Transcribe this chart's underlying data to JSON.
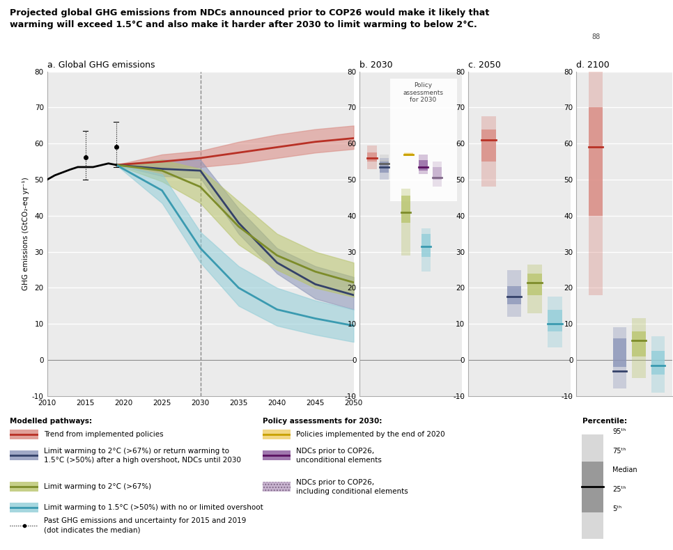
{
  "title_line1": "Projected global GHG emissions from NDCs announced prior to COP26 would make it likely that",
  "title_line2": "warming will exceed 1.5°C and also make it harder after 2030 to limit warming to below 2°C.",
  "panel_a_title": "a. Global GHG emissions",
  "panel_b_title": "b. 2030",
  "panel_c_title": "c. 2050",
  "panel_d_title": "d. 2100",
  "ylabel": "GHG emissions (GtCO₂-eq yr⁻¹)",
  "historical_years": [
    2010,
    2011,
    2012,
    2013,
    2014,
    2015,
    2016,
    2017,
    2018,
    2019
  ],
  "historical_values": [
    50.0,
    51.2,
    52.0,
    52.8,
    53.5,
    53.5,
    53.5,
    54.0,
    54.5,
    54.1
  ],
  "error_2015_med": 56.2,
  "error_2015_lo": 50.0,
  "error_2015_hi": 63.5,
  "error_2019_med": 59.1,
  "error_2019_lo": 53.5,
  "error_2019_hi": 66.0,
  "red_line_years": [
    2019,
    2025,
    2030,
    2035,
    2040,
    2045,
    2050
  ],
  "red_line_median": [
    54.1,
    55.0,
    56.0,
    57.5,
    59.0,
    60.5,
    61.5
  ],
  "red_band_lo": [
    54.1,
    53.5,
    53.5,
    54.5,
    56.0,
    57.5,
    58.5
  ],
  "red_band_hi": [
    54.1,
    57.0,
    58.0,
    60.5,
    62.5,
    64.0,
    65.0
  ],
  "navy_line_years": [
    2019,
    2025,
    2030,
    2035,
    2040,
    2045,
    2050
  ],
  "navy_line_median": [
    54.1,
    53.0,
    52.5,
    38.0,
    27.0,
    21.0,
    18.0
  ],
  "navy_band_lo": [
    54.1,
    51.0,
    50.5,
    35.0,
    24.0,
    17.0,
    14.0
  ],
  "navy_band_hi": [
    54.1,
    55.5,
    55.5,
    42.0,
    31.0,
    26.0,
    23.0
  ],
  "green_line_years": [
    2019,
    2025,
    2030,
    2035,
    2040,
    2045,
    2050
  ],
  "green_line_median": [
    54.1,
    52.5,
    48.0,
    37.0,
    29.0,
    24.5,
    21.5
  ],
  "green_band_lo": [
    54.1,
    49.5,
    43.5,
    32.0,
    25.0,
    20.0,
    17.5
  ],
  "green_band_hi": [
    54.1,
    55.5,
    53.0,
    44.0,
    35.0,
    30.0,
    27.0
  ],
  "blue_line_years": [
    2019,
    2025,
    2030,
    2035,
    2040,
    2045,
    2050
  ],
  "blue_line_median": [
    54.1,
    47.0,
    31.0,
    20.0,
    14.0,
    11.5,
    9.5
  ],
  "blue_band_lo": [
    54.1,
    43.5,
    27.0,
    15.0,
    9.5,
    7.0,
    5.0
  ],
  "blue_band_hi": [
    54.1,
    51.5,
    35.5,
    26.0,
    20.0,
    16.5,
    14.0
  ],
  "red_color": "#b83025",
  "red_fill": "#d98880",
  "navy_color": "#344169",
  "navy_fill": "#8a94b8",
  "green_color": "#7d8c2a",
  "green_fill": "#b8c46a",
  "blue_color": "#3a9ab0",
  "blue_fill": "#90cdd8",
  "b2030": {
    "red_p5": 53.0,
    "red_p25": 55.0,
    "red_med": 56.0,
    "red_p75": 57.5,
    "red_p95": 59.5,
    "red2_p5": 52.0,
    "red2_p25": 53.5,
    "red2_med": 54.5,
    "red2_p75": 55.5,
    "red2_p95": 57.0,
    "yellow_p5": 56.5,
    "yellow_p25": 56.8,
    "yellow_med": 57.0,
    "yellow_p75": 57.3,
    "yellow_p95": 57.5,
    "purple_p5": 51.5,
    "purple_p25": 52.5,
    "purple_med": 53.5,
    "purple_p75": 55.5,
    "purple_p95": 57.0,
    "striped_p5": 48.0,
    "striped_p25": 50.0,
    "striped_med": 50.5,
    "striped_p75": 53.5,
    "striped_p95": 55.0,
    "navy_p5": 50.0,
    "navy_p25": 52.0,
    "navy_med": 53.5,
    "navy_p75": 55.0,
    "navy_p95": 56.0,
    "green_p5": 29.0,
    "green_p25": 38.0,
    "green_med": 41.0,
    "green_p75": 45.5,
    "green_p95": 47.5,
    "blue_p5": 24.5,
    "blue_p25": 28.5,
    "blue_med": 31.5,
    "blue_p75": 35.0,
    "blue_p95": 36.5
  },
  "c2050": {
    "red_p5": 48.0,
    "red_p25": 55.0,
    "red_med": 61.0,
    "red_p75": 64.0,
    "red_p95": 67.5,
    "navy_p5": 12.0,
    "navy_p25": 15.5,
    "navy_med": 17.5,
    "navy_p75": 20.5,
    "navy_p95": 25.0,
    "green_p5": 13.0,
    "green_p25": 18.0,
    "green_med": 21.5,
    "green_p75": 24.0,
    "green_p95": 26.5,
    "blue_p5": 3.5,
    "blue_p25": 8.0,
    "blue_med": 10.0,
    "blue_p75": 14.0,
    "blue_p95": 17.5
  },
  "d2100": {
    "red_p5": 18.0,
    "red_p25": 40.0,
    "red_med": 59.0,
    "red_p75": 70.0,
    "red_p95": 88.0,
    "navy_p5": -8.0,
    "navy_p25": -2.0,
    "navy_med": -3.0,
    "navy_p75": 6.0,
    "navy_p95": 9.0,
    "green_p5": -5.0,
    "green_p25": 1.0,
    "green_med": 5.5,
    "green_p75": 8.0,
    "green_p95": 11.5,
    "blue_p5": -9.0,
    "blue_p25": -4.0,
    "blue_med": -1.5,
    "blue_p75": 2.5,
    "blue_p95": 6.5
  },
  "bg_color": "#ebebeb",
  "ylim": [
    -10,
    80
  ],
  "yticks": [
    -10,
    0,
    10,
    20,
    30,
    40,
    50,
    60,
    70,
    80
  ]
}
